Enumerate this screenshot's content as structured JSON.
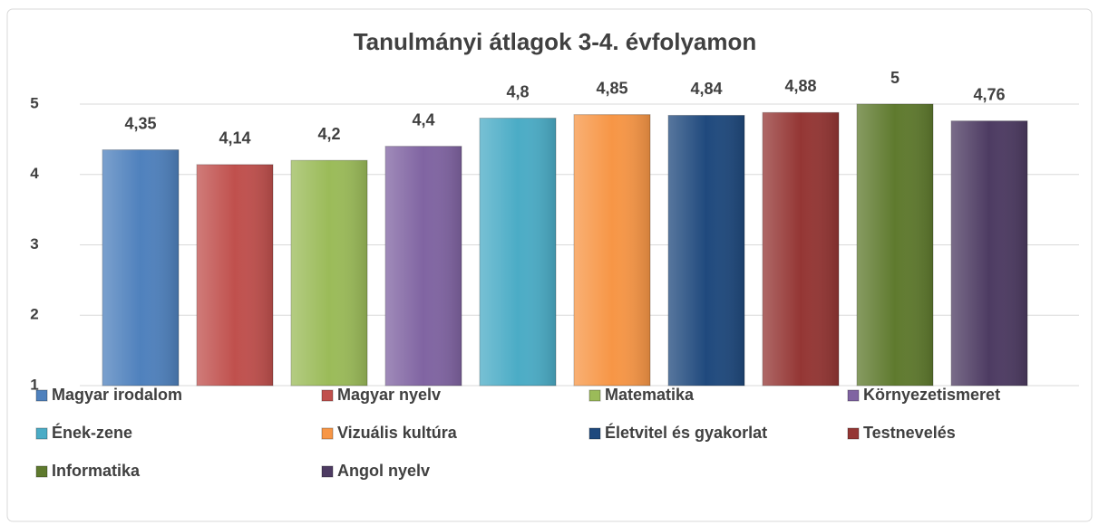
{
  "chart_data": {
    "type": "bar",
    "title": "Tanulmányi átlagok  3-4. évfolyamon",
    "ylim": [
      1,
      5
    ],
    "yticks": [
      1,
      2,
      3,
      4,
      5
    ],
    "grid": true,
    "legend": "bottom",
    "series": [
      {
        "name": "Magyar irodalom",
        "color": "#4f81bd",
        "values": [
          4.35
        ],
        "value_labels": [
          "4,35"
        ]
      },
      {
        "name": "Magyar nyelv",
        "color": "#c0504d",
        "values": [
          4.14
        ],
        "value_labels": [
          "4,14"
        ]
      },
      {
        "name": "Matematika",
        "color": "#9bbb59",
        "values": [
          4.2
        ],
        "value_labels": [
          "4,2"
        ]
      },
      {
        "name": "Környezetismeret",
        "color": "#8064a2",
        "values": [
          4.4
        ],
        "value_labels": [
          "4,4"
        ]
      },
      {
        "name": "Ének-zene",
        "color": "#4bacc6",
        "values": [
          4.8
        ],
        "value_labels": [
          "4,8"
        ]
      },
      {
        "name": "Vizuális kultúra",
        "color": "#f79646",
        "values": [
          4.85
        ],
        "value_labels": [
          "4,85"
        ]
      },
      {
        "name": "Életvitel és gyakorlat",
        "color": "#1f497d",
        "values": [
          4.84
        ],
        "value_labels": [
          "4,84"
        ]
      },
      {
        "name": "Testnevelés",
        "color": "#943634",
        "values": [
          4.88
        ],
        "value_labels": [
          "4,88"
        ]
      },
      {
        "name": "Informatika",
        "color": "#5f7a2e",
        "values": [
          5
        ]
      },
      {
        "name": "Angol nyelv",
        "color": "#4d3b62",
        "values": [
          4.76
        ],
        "value_labels": [
          "4,76"
        ]
      }
    ]
  }
}
